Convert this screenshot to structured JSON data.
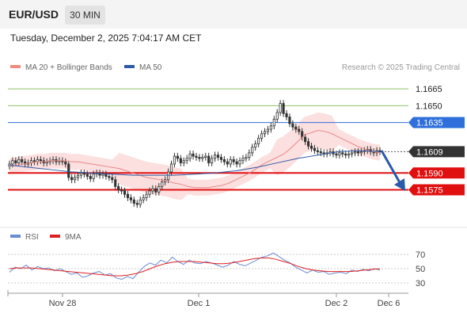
{
  "header": {
    "symbol": "EUR/USD",
    "timeframe": "30 MIN"
  },
  "datetime": "Tuesday, December 2, 2025 7:04:17 AM CET",
  "legend": {
    "ma20": {
      "label": "MA 20 + Bollinger Bands",
      "color": "#f28b82"
    },
    "ma50": {
      "label": "MA 50",
      "color": "#2e5aa8"
    }
  },
  "copyright": "Research © 2025 Trading Central",
  "rsi_legend": {
    "rsi": {
      "label": "RSI",
      "color": "#6b8cd6"
    },
    "ma9": {
      "label": "9MA",
      "color": "#e02020"
    }
  },
  "colors": {
    "target": "#8fc46a",
    "pivot": "#2e6fdb",
    "support": "#e01010",
    "last": "#333333",
    "bands": "#fcd9d9",
    "candle": "#333333",
    "arrow": "#2a5aa8"
  },
  "chart_data": [
    {
      "type": "candlestick",
      "ylim": [
        1.1545,
        1.1675
      ],
      "levels": [
        {
          "value": 1.1665,
          "label": "1.1665",
          "kind": "target"
        },
        {
          "value": 1.165,
          "label": "1.1650",
          "kind": "target"
        },
        {
          "value": 1.1635,
          "label": "1.1635",
          "kind": "pivot"
        },
        {
          "value": 1.1609,
          "label": "1.1609",
          "kind": "last"
        },
        {
          "value": 1.159,
          "label": "1.1590",
          "kind": "support"
        },
        {
          "value": 1.1575,
          "label": "1.1575",
          "kind": "support"
        }
      ],
      "close": [
        1.1598,
        1.1601,
        1.1599,
        1.1602,
        1.16,
        1.1598,
        1.1599,
        1.1601,
        1.16,
        1.1602,
        1.1601,
        1.1599,
        1.16,
        1.1601,
        1.1602,
        1.16,
        1.1601,
        1.16,
        1.1598,
        1.1586,
        1.1584,
        1.1586,
        1.1588,
        1.159,
        1.1589,
        1.1587,
        1.1585,
        1.1589,
        1.159,
        1.1588,
        1.1589,
        1.1587,
        1.1586,
        1.1584,
        1.1578,
        1.1575,
        1.1574,
        1.1571,
        1.1568,
        1.1566,
        1.1563,
        1.1562,
        1.1566,
        1.1568,
        1.1571,
        1.1574,
        1.1576,
        1.1573,
        1.1578,
        1.1582,
        1.1584,
        1.1591,
        1.1598,
        1.1605,
        1.1603,
        1.1599,
        1.1601,
        1.1603,
        1.1607,
        1.1605,
        1.1604,
        1.1603,
        1.1604,
        1.1605,
        1.1599,
        1.1603,
        1.1606,
        1.1604,
        1.1602,
        1.16,
        1.1598,
        1.1602,
        1.16,
        1.1598,
        1.1601,
        1.1603,
        1.1604,
        1.1608,
        1.1613,
        1.1616,
        1.1621,
        1.1625,
        1.1627,
        1.1629,
        1.1632,
        1.1638,
        1.1644,
        1.1652,
        1.1643,
        1.164,
        1.1634,
        1.1631,
        1.1629,
        1.1627,
        1.1622,
        1.1618,
        1.1614,
        1.1612,
        1.161,
        1.1609,
        1.1608,
        1.1607,
        1.1608,
        1.1609,
        1.1607,
        1.1606,
        1.1608,
        1.1607,
        1.1606,
        1.1607,
        1.1608,
        1.1609,
        1.1608,
        1.1609,
        1.161,
        1.1611,
        1.1609,
        1.1608,
        1.161,
        1.1609
      ],
      "ma20": [
        1.1596,
        1.1597,
        1.1598,
        1.1599,
        1.16,
        1.16,
        1.1601,
        1.1601,
        1.1601,
        1.16,
        1.16,
        1.1599,
        1.1598,
        1.1597,
        1.1596,
        1.1595,
        1.1594,
        1.1592,
        1.159,
        1.1588,
        1.1586,
        1.1585,
        1.1584,
        1.1583,
        1.1581,
        1.158,
        1.1578,
        1.1577,
        1.1577,
        1.1577,
        1.1578,
        1.1579,
        1.1581,
        1.1584,
        1.1587,
        1.159,
        1.1594,
        1.1598,
        1.1601,
        1.1604,
        1.1607,
        1.1612,
        1.1618,
        1.1624,
        1.1626,
        1.1628,
        1.1627,
        1.1625,
        1.1622,
        1.1619,
        1.1616,
        1.1613,
        1.1611,
        1.1609,
        1.1608
      ],
      "ma50": [
        1.1597,
        1.1595,
        1.1593,
        1.1591,
        1.159,
        1.1589,
        1.1588,
        1.1588,
        1.1588,
        1.1589,
        1.159,
        1.1592,
        1.1595,
        1.1599,
        1.1603,
        1.1606,
        1.1609,
        1.161,
        1.1609
      ]
    },
    {
      "type": "line",
      "name": "RSI",
      "ylim": [
        20,
        80
      ],
      "ticks": [
        70,
        50,
        30
      ],
      "rsi": [
        45,
        52,
        50,
        55,
        48,
        53,
        50,
        51,
        47,
        50,
        46,
        42,
        44,
        38,
        40,
        44,
        46,
        41,
        43,
        37,
        35,
        39,
        36,
        45,
        53,
        58,
        55,
        62,
        58,
        66,
        60,
        56,
        62,
        58,
        57,
        60,
        58,
        55,
        52,
        55,
        60,
        56,
        54,
        58,
        62,
        66,
        68,
        72,
        67,
        62,
        58,
        52,
        48,
        44,
        48,
        45,
        46,
        42,
        44,
        45,
        43,
        48,
        46,
        49,
        47,
        50,
        48
      ],
      "ma9": [
        50,
        51,
        51,
        51,
        50,
        49,
        48,
        47,
        46,
        45,
        44,
        43,
        42,
        41,
        40,
        40,
        41,
        43,
        46,
        50,
        54,
        57,
        59,
        60,
        60,
        60,
        59,
        58,
        57,
        57,
        58,
        60,
        62,
        64,
        65,
        65,
        63,
        60,
        57,
        53,
        50,
        48,
        47,
        46,
        46,
        46,
        46,
        47,
        48,
        49,
        50
      ]
    }
  ],
  "xaxis": {
    "ticks": [
      "Nov 28",
      "Dec 1",
      "Dec 2",
      "Dec 6"
    ]
  }
}
